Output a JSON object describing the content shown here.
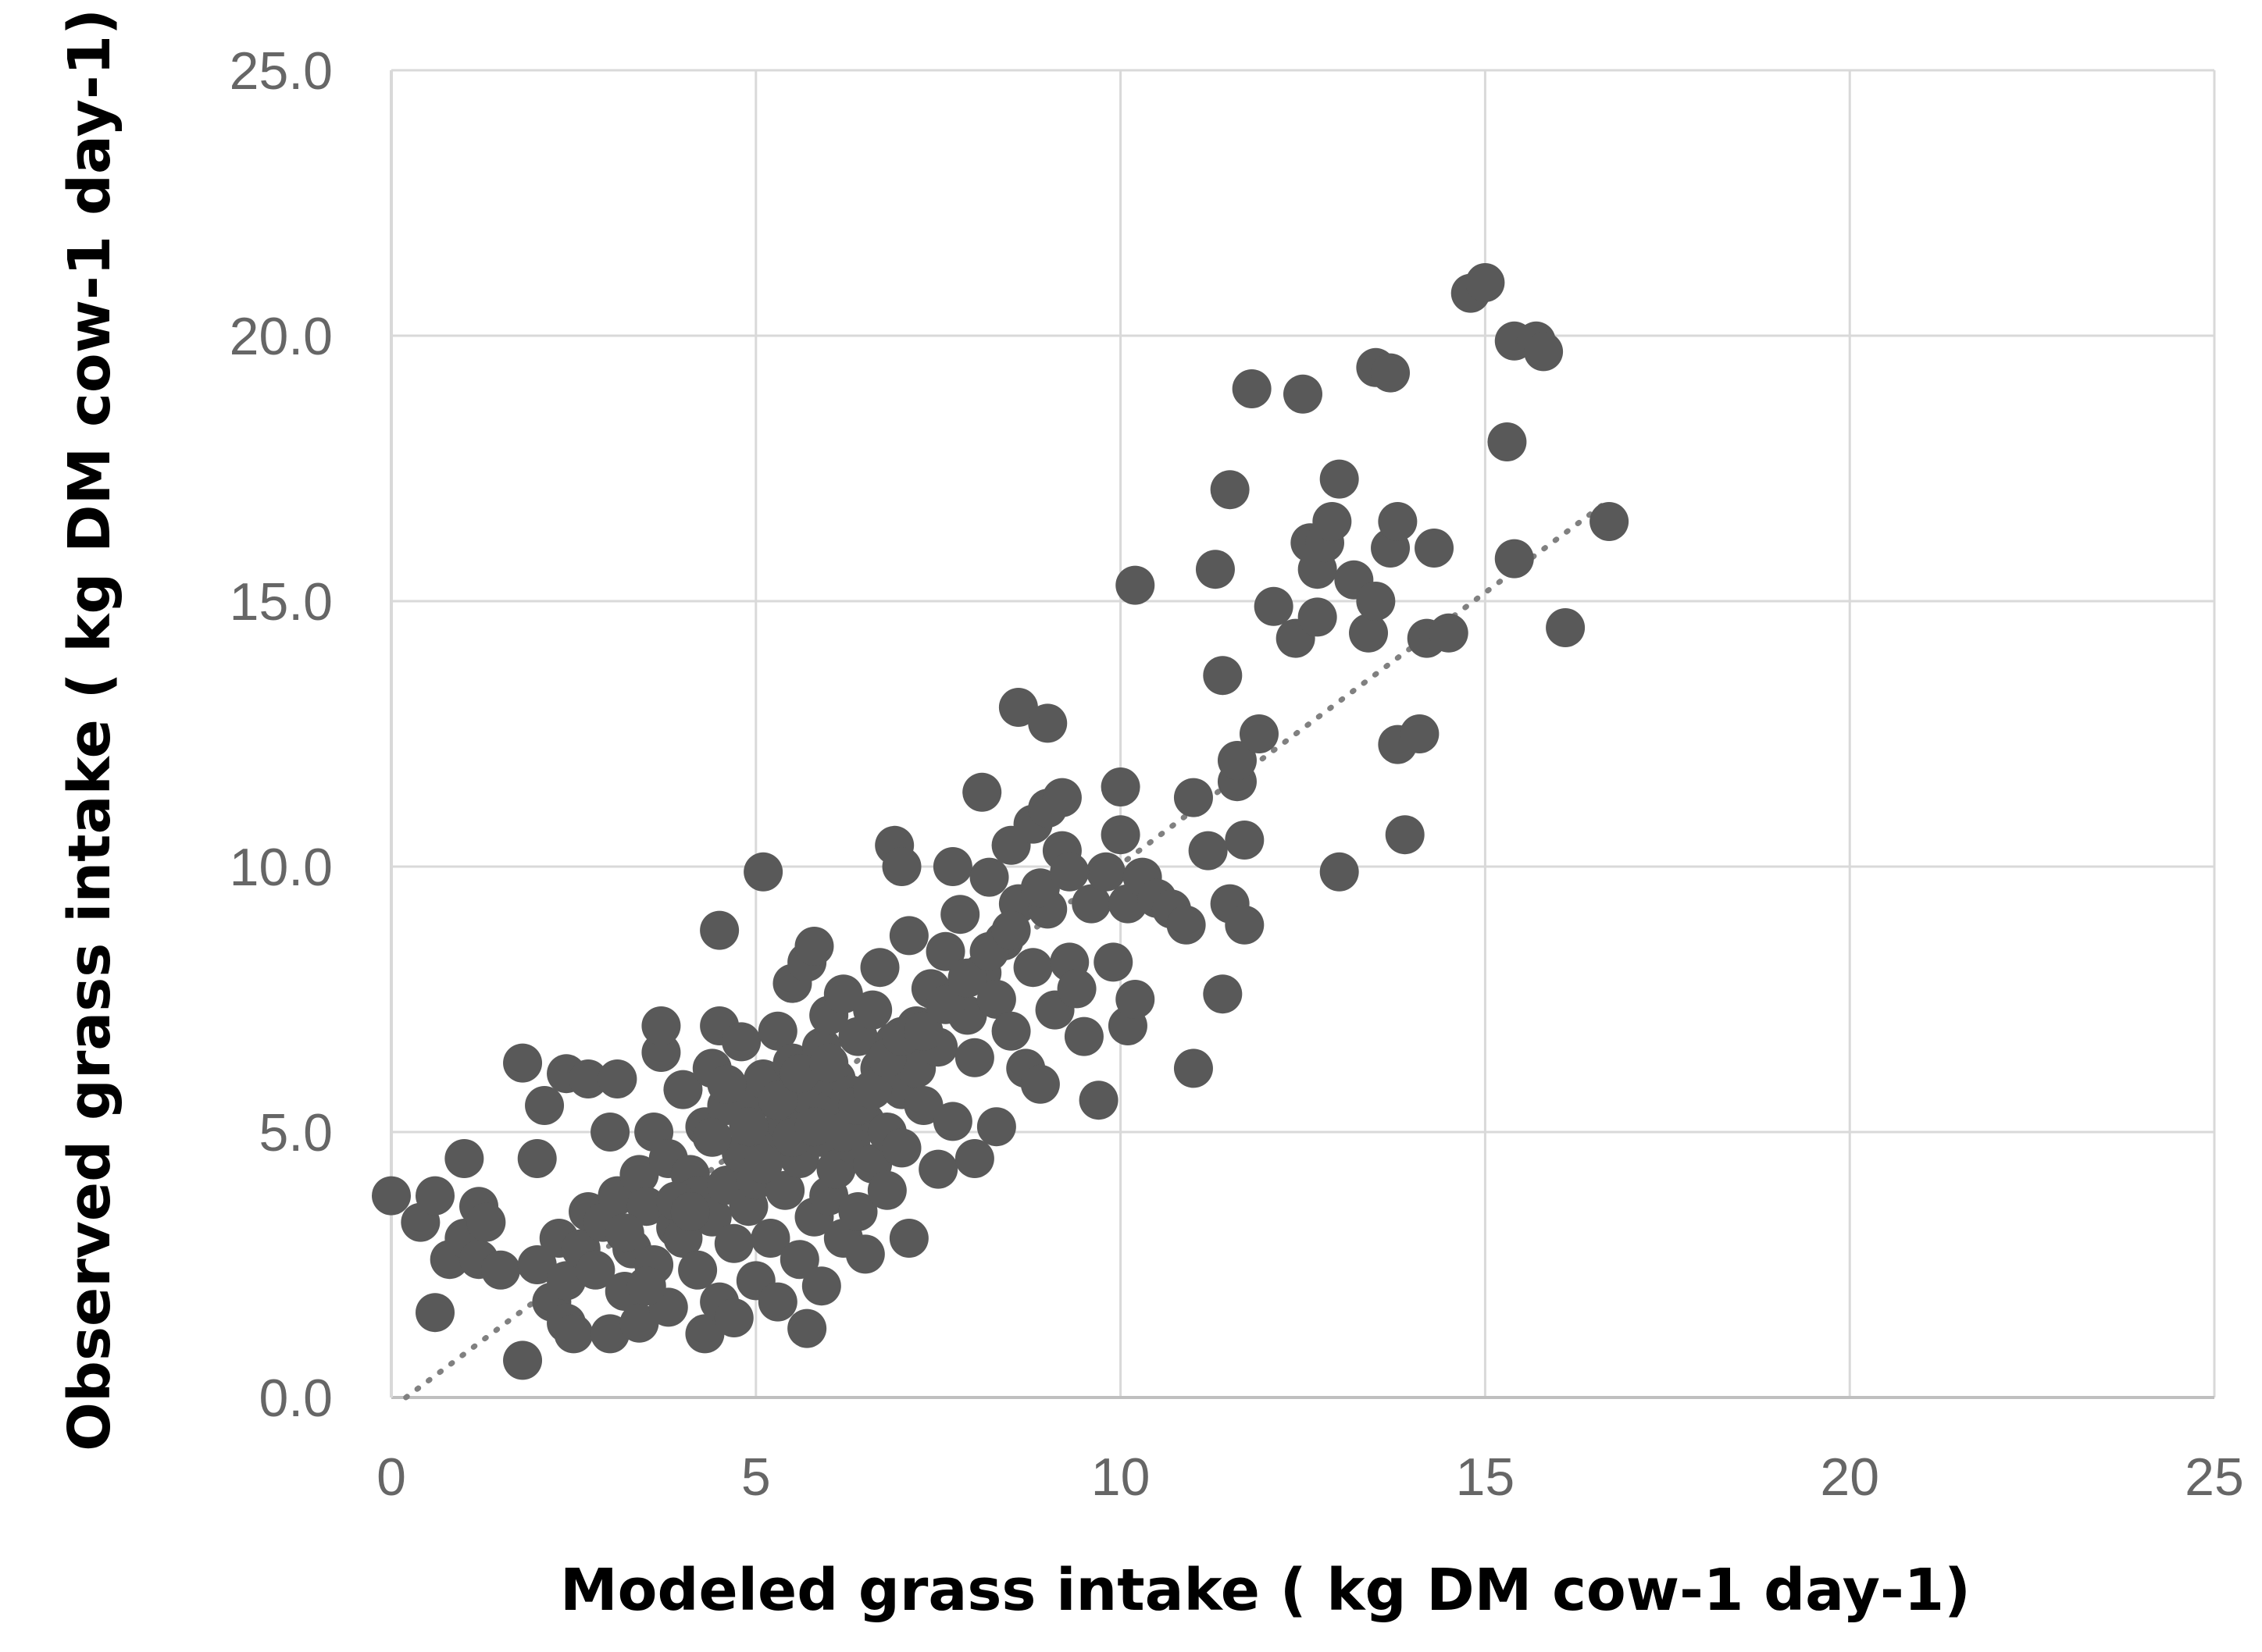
{
  "chart_data": {
    "type": "scatter",
    "xlabel": "Modeled grass intake ( kg DM cow-1 day-1)",
    "ylabel": "Observed grass intake ( kg DM cow-1 day-1)",
    "xlim": [
      0,
      25
    ],
    "ylim": [
      0,
      25
    ],
    "xticks": [
      "0",
      "5",
      "10",
      "15",
      "20",
      "25"
    ],
    "yticks": [
      "0.0",
      "5.0",
      "10.0",
      "15.0",
      "20.0",
      "25.0"
    ],
    "grid": true,
    "legend": "none",
    "point_color": "#595959",
    "grid_color": "#d9d9d9",
    "trendline": {
      "style": "dotted",
      "color": "#808080",
      "x": [
        0.2,
        16.6
      ],
      "y": [
        0.0,
        16.8
      ]
    },
    "points": [
      [
        0.0,
        3.8
      ],
      [
        0.4,
        3.3
      ],
      [
        0.6,
        3.8
      ],
      [
        0.6,
        1.6
      ],
      [
        0.8,
        2.6
      ],
      [
        1.0,
        3.0
      ],
      [
        1.0,
        4.5
      ],
      [
        1.2,
        2.6
      ],
      [
        1.2,
        3.6
      ],
      [
        1.3,
        3.3
      ],
      [
        1.5,
        2.4
      ],
      [
        1.8,
        6.3
      ],
      [
        1.8,
        0.7
      ],
      [
        2.0,
        2.5
      ],
      [
        2.0,
        4.5
      ],
      [
        2.1,
        5.5
      ],
      [
        2.2,
        1.8
      ],
      [
        2.3,
        3.0
      ],
      [
        2.4,
        2.2
      ],
      [
        2.4,
        1.4
      ],
      [
        2.4,
        6.1
      ],
      [
        2.5,
        1.2
      ],
      [
        2.6,
        2.8
      ],
      [
        2.7,
        3.5
      ],
      [
        2.7,
        6.0
      ],
      [
        2.8,
        2.4
      ],
      [
        2.9,
        3.3
      ],
      [
        3.0,
        5.0
      ],
      [
        3.0,
        1.2
      ],
      [
        3.1,
        3.8
      ],
      [
        3.1,
        6.0
      ],
      [
        3.2,
        2.0
      ],
      [
        3.3,
        2.8
      ],
      [
        3.4,
        4.2
      ],
      [
        3.4,
        1.4
      ],
      [
        3.5,
        3.6
      ],
      [
        3.6,
        5.0
      ],
      [
        3.6,
        2.5
      ],
      [
        3.7,
        6.5
      ],
      [
        3.7,
        7.0
      ],
      [
        3.8,
        4.5
      ],
      [
        3.8,
        1.7
      ],
      [
        3.9,
        3.2
      ],
      [
        4.0,
        5.8
      ],
      [
        4.0,
        3.0
      ],
      [
        4.1,
        4.2
      ],
      [
        4.2,
        2.4
      ],
      [
        4.2,
        3.8
      ],
      [
        4.3,
        1.2
      ],
      [
        4.3,
        5.1
      ],
      [
        4.4,
        6.2
      ],
      [
        4.4,
        3.4
      ],
      [
        4.5,
        8.8
      ],
      [
        4.5,
        1.8
      ],
      [
        4.5,
        7.0
      ],
      [
        4.6,
        5.5
      ],
      [
        4.6,
        4.0
      ],
      [
        4.7,
        2.9
      ],
      [
        4.7,
        1.5
      ],
      [
        4.8,
        6.7
      ],
      [
        4.8,
        4.6
      ],
      [
        4.9,
        3.6
      ],
      [
        5.0,
        5.6
      ],
      [
        5.0,
        2.2
      ],
      [
        5.0,
        4.1
      ],
      [
        5.1,
        9.9
      ],
      [
        5.1,
        6.0
      ],
      [
        5.2,
        3.0
      ],
      [
        5.2,
        4.8
      ],
      [
        5.3,
        6.9
      ],
      [
        5.3,
        1.8
      ],
      [
        5.4,
        5.2
      ],
      [
        5.4,
        3.9
      ],
      [
        5.5,
        7.8
      ],
      [
        5.5,
        6.3
      ],
      [
        5.6,
        4.5
      ],
      [
        5.6,
        2.6
      ],
      [
        5.7,
        8.2
      ],
      [
        5.7,
        5.7
      ],
      [
        5.7,
        1.3
      ],
      [
        5.8,
        3.4
      ],
      [
        5.8,
        8.5
      ],
      [
        5.9,
        6.6
      ],
      [
        5.9,
        4.9
      ],
      [
        5.9,
        2.1
      ],
      [
        6.0,
        7.2
      ],
      [
        6.0,
        5.4
      ],
      [
        6.0,
        3.8
      ],
      [
        6.1,
        6.0
      ],
      [
        6.1,
        4.3
      ],
      [
        6.2,
        7.6
      ],
      [
        6.2,
        3.0
      ],
      [
        6.3,
        5.7
      ],
      [
        6.3,
        4.8
      ],
      [
        6.4,
        6.8
      ],
      [
        6.4,
        3.5
      ],
      [
        6.5,
        5.2
      ],
      [
        6.5,
        2.7
      ],
      [
        6.6,
        7.3
      ],
      [
        6.6,
        4.4
      ],
      [
        6.7,
        6.2
      ],
      [
        6.7,
        8.1
      ],
      [
        6.8,
        5.0
      ],
      [
        6.8,
        3.9
      ],
      [
        6.9,
        10.4
      ],
      [
        6.9,
        6.7
      ],
      [
        7.0,
        10.0
      ],
      [
        7.0,
        4.7
      ],
      [
        7.0,
        5.8
      ],
      [
        7.1,
        8.7
      ],
      [
        7.1,
        3.0
      ],
      [
        7.2,
        7.0
      ],
      [
        7.2,
        6.2
      ],
      [
        7.3,
        5.5
      ],
      [
        7.4,
        7.7
      ],
      [
        7.5,
        4.3
      ],
      [
        7.5,
        6.6
      ],
      [
        7.6,
        8.4
      ],
      [
        7.7,
        10.0
      ],
      [
        7.7,
        5.2
      ],
      [
        7.8,
        9.1
      ],
      [
        7.9,
        7.2
      ],
      [
        8.0,
        4.5
      ],
      [
        8.0,
        6.4
      ],
      [
        8.1,
        11.4
      ],
      [
        8.1,
        8.0
      ],
      [
        8.2,
        9.8
      ],
      [
        8.3,
        5.1
      ],
      [
        8.3,
        7.5
      ],
      [
        8.4,
        8.6
      ],
      [
        8.5,
        10.4
      ],
      [
        8.5,
        6.9
      ],
      [
        8.6,
        13.0
      ],
      [
        8.6,
        9.3
      ],
      [
        8.7,
        6.2
      ],
      [
        8.8,
        10.8
      ],
      [
        8.8,
        8.1
      ],
      [
        8.9,
        5.9
      ],
      [
        9.0,
        12.7
      ],
      [
        9.0,
        11.1
      ],
      [
        9.0,
        9.2
      ],
      [
        9.1,
        7.3
      ],
      [
        9.2,
        11.3
      ],
      [
        9.2,
        10.3
      ],
      [
        9.3,
        8.2
      ],
      [
        9.4,
        7.7
      ],
      [
        9.5,
        6.8
      ],
      [
        9.6,
        9.3
      ],
      [
        9.7,
        5.6
      ],
      [
        9.8,
        9.9
      ],
      [
        9.9,
        8.2
      ],
      [
        10.0,
        11.5
      ],
      [
        10.0,
        10.6
      ],
      [
        10.1,
        7.0
      ],
      [
        10.1,
        9.3
      ],
      [
        10.2,
        7.5
      ],
      [
        10.2,
        15.3
      ],
      [
        10.3,
        9.8
      ],
      [
        10.5,
        9.4
      ],
      [
        10.7,
        9.2
      ],
      [
        10.9,
        8.9
      ],
      [
        11.0,
        11.3
      ],
      [
        11.0,
        6.2
      ],
      [
        11.2,
        10.3
      ],
      [
        11.3,
        15.6
      ],
      [
        11.4,
        13.6
      ],
      [
        11.4,
        7.6
      ],
      [
        11.5,
        17.1
      ],
      [
        11.5,
        9.3
      ],
      [
        11.6,
        11.6
      ],
      [
        11.6,
        12.0
      ],
      [
        11.7,
        10.5
      ],
      [
        11.7,
        8.9
      ],
      [
        11.8,
        19.0
      ],
      [
        11.9,
        12.5
      ],
      [
        12.1,
        14.9
      ],
      [
        12.4,
        14.3
      ],
      [
        12.5,
        18.9
      ],
      [
        12.6,
        16.1
      ],
      [
        12.7,
        15.6
      ],
      [
        12.7,
        14.7
      ],
      [
        12.8,
        16.1
      ],
      [
        12.9,
        16.5
      ],
      [
        13.0,
        17.3
      ],
      [
        13.0,
        9.9
      ],
      [
        13.2,
        15.4
      ],
      [
        13.4,
        14.4
      ],
      [
        13.5,
        15.0
      ],
      [
        13.5,
        19.4
      ],
      [
        13.7,
        19.3
      ],
      [
        13.7,
        16.0
      ],
      [
        13.8,
        16.5
      ],
      [
        13.8,
        12.3
      ],
      [
        13.9,
        10.6
      ],
      [
        14.1,
        12.5
      ],
      [
        14.2,
        14.3
      ],
      [
        14.3,
        16.0
      ],
      [
        14.5,
        14.4
      ],
      [
        14.8,
        20.8
      ],
      [
        15.0,
        21.0
      ],
      [
        15.3,
        18.0
      ],
      [
        15.4,
        19.9
      ],
      [
        15.4,
        15.8
      ],
      [
        15.7,
        19.9
      ],
      [
        15.8,
        19.7
      ],
      [
        16.1,
        14.5
      ],
      [
        16.7,
        16.5
      ],
      [
        3.2,
        3.1
      ],
      [
        3.5,
        2.1
      ],
      [
        3.9,
        3.7
      ],
      [
        4.1,
        3.5
      ],
      [
        4.4,
        4.9
      ],
      [
        4.6,
        5.9
      ],
      [
        4.9,
        5.1
      ],
      [
        5.1,
        4.4
      ],
      [
        5.3,
        5.6
      ],
      [
        5.5,
        4.9
      ],
      [
        5.6,
        6.1
      ],
      [
        5.8,
        5.1
      ],
      [
        6.0,
        6.3
      ],
      [
        6.2,
        5.0
      ],
      [
        6.4,
        5.5
      ],
      [
        6.6,
        5.8
      ],
      [
        6.8,
        6.4
      ],
      [
        7.0,
        6.8
      ],
      [
        7.3,
        6.9
      ],
      [
        7.6,
        7.4
      ],
      [
        7.9,
        7.9
      ],
      [
        8.2,
        8.4
      ],
      [
        8.5,
        8.8
      ],
      [
        8.9,
        9.6
      ],
      [
        9.3,
        9.9
      ]
    ]
  }
}
